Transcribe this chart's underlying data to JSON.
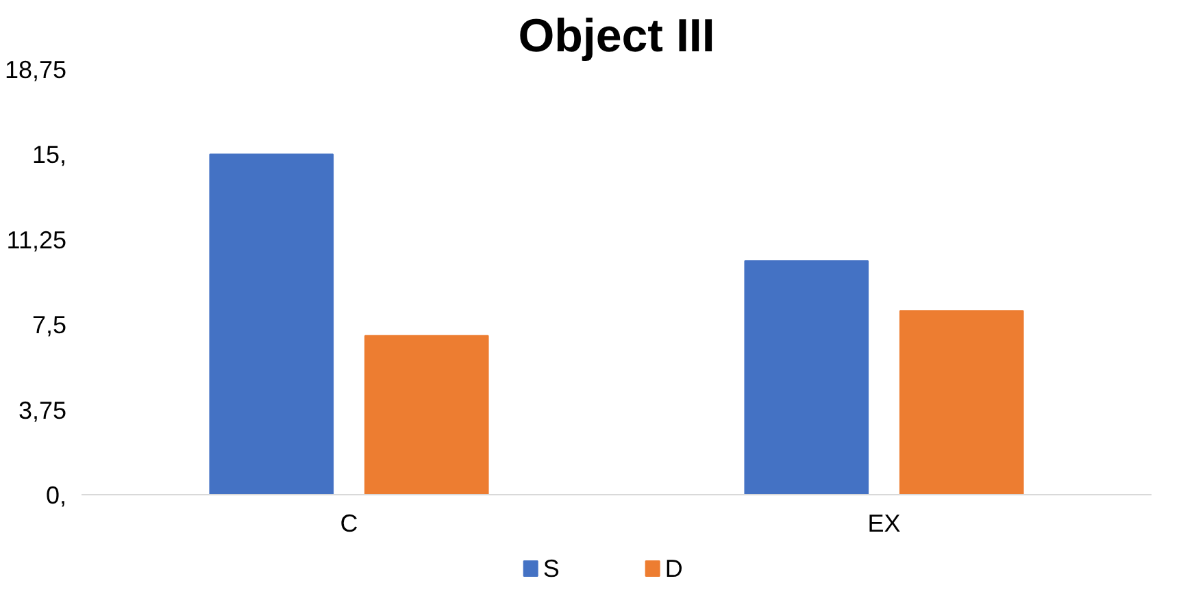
{
  "chart_data": {
    "type": "bar",
    "title": "Object III",
    "categories": [
      "C",
      "EX"
    ],
    "series": [
      {
        "name": "S",
        "color": "#4472c4",
        "values": [
          15,
          10.3
        ]
      },
      {
        "name": "D",
        "color": "#ed7d31",
        "values": [
          7,
          8.1
        ]
      }
    ],
    "ylim": [
      0,
      18.75
    ],
    "yticks": [
      {
        "value": 0,
        "label": "0,"
      },
      {
        "value": 3.75,
        "label": "3,75"
      },
      {
        "value": 7.5,
        "label": "7,5"
      },
      {
        "value": 11.25,
        "label": "11,25"
      },
      {
        "value": 15,
        "label": "15,"
      },
      {
        "value": 18.75,
        "label": "18,75"
      }
    ],
    "grid": false,
    "legend": "bottom"
  }
}
